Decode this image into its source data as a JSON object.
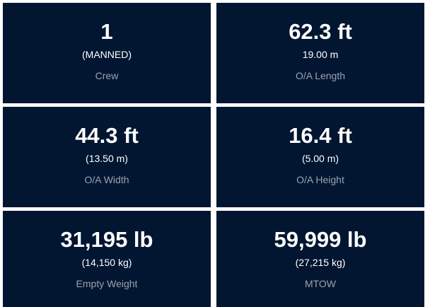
{
  "cards": [
    {
      "value": "1",
      "sub": "(MANNED)",
      "label": "Crew"
    },
    {
      "value": "62.3 ft",
      "sub": "19.00 m",
      "label": "O/A Length"
    },
    {
      "value": "44.3 ft",
      "sub": "(13.50 m)",
      "label": "O/A Width"
    },
    {
      "value": "16.4 ft",
      "sub": "(5.00 m)",
      "label": "O/A Height"
    },
    {
      "value": "31,195 lb",
      "sub": "(14,150 kg)",
      "label": "Empty Weight"
    },
    {
      "value": "59,999 lb",
      "sub": "(27,215 kg)",
      "label": "MTOW"
    }
  ]
}
